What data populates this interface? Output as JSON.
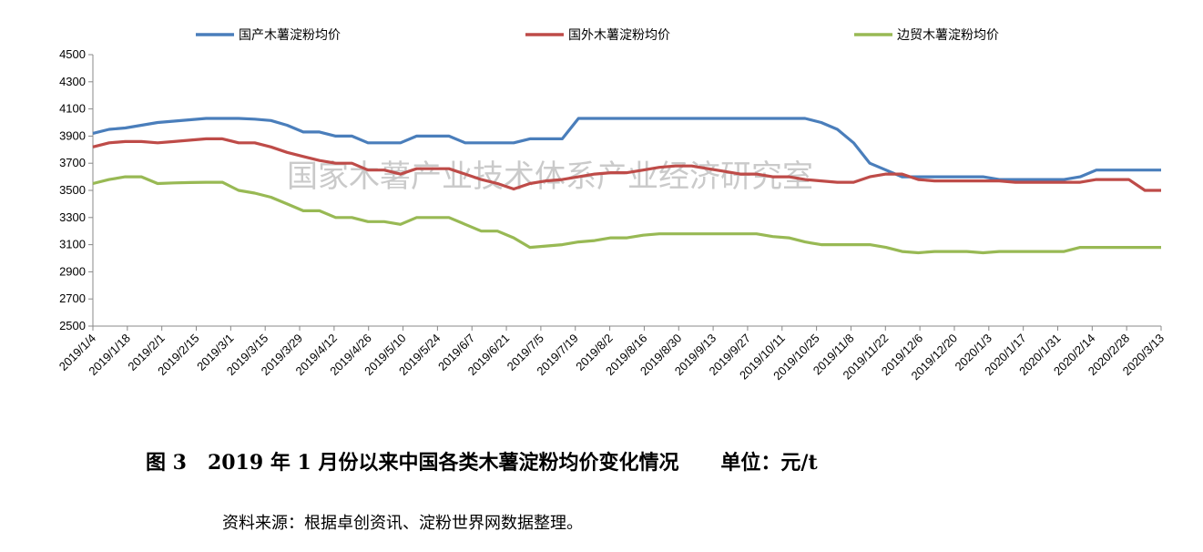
{
  "chart_data": {
    "type": "line",
    "title": "",
    "xlabel": "",
    "ylabel": "",
    "ylim": [
      2500,
      4500
    ],
    "yticks": [
      2500,
      2700,
      2900,
      3100,
      3300,
      3500,
      3700,
      3900,
      4100,
      4300,
      4500
    ],
    "legend_position": "top",
    "grid": false,
    "x_tick_labels": [
      "2019/1/4",
      "2019/1/18",
      "2019/2/1",
      "2019/2/15",
      "2019/3/1",
      "2019/3/15",
      "2019/3/29",
      "2019/4/12",
      "2019/4/26",
      "2019/5/10",
      "2019/5/24",
      "2019/6/7",
      "2019/6/21",
      "2019/7/5",
      "2019/7/19",
      "2019/8/2",
      "2019/8/16",
      "2019/8/30",
      "2019/9/13",
      "2019/9/27",
      "2019/10/11",
      "2019/10/25",
      "2019/11/8",
      "2019/11/22",
      "2019/12/6",
      "2019/12/20",
      "2020/1/3",
      "2020/1/17",
      "2020/1/31",
      "2020/2/14",
      "2020/2/28",
      "2020/3/13"
    ],
    "series": [
      {
        "name": "国产木薯淀粉均价",
        "color": "#4a7ebb",
        "values": [
          3920,
          3950,
          3960,
          3980,
          4000,
          4010,
          4020,
          4030,
          4030,
          4030,
          4025,
          4015,
          3980,
          3930,
          3930,
          3900,
          3900,
          3850,
          3850,
          3850,
          3900,
          3900,
          3900,
          3850,
          3850,
          3850,
          3850,
          3880,
          3880,
          3880,
          4030,
          4030,
          4030,
          4030,
          4030,
          4030,
          4030,
          4030,
          4030,
          4030,
          4030,
          4030,
          4030,
          4030,
          4030,
          4000,
          3950,
          3850,
          3700,
          3650,
          3600,
          3600,
          3600,
          3600,
          3600,
          3600,
          3580,
          3580,
          3580,
          3580,
          3580,
          3600,
          3650,
          3650,
          3650,
          3650,
          3650
        ]
      },
      {
        "name": "国外木薯淀粉均价",
        "color": "#be4b48",
        "values": [
          3820,
          3850,
          3860,
          3860,
          3850,
          3860,
          3870,
          3880,
          3880,
          3850,
          3850,
          3820,
          3780,
          3750,
          3720,
          3700,
          3700,
          3650,
          3650,
          3620,
          3660,
          3660,
          3660,
          3620,
          3580,
          3550,
          3510,
          3550,
          3570,
          3580,
          3600,
          3620,
          3630,
          3630,
          3650,
          3670,
          3680,
          3680,
          3660,
          3640,
          3620,
          3620,
          3600,
          3600,
          3580,
          3570,
          3560,
          3560,
          3600,
          3620,
          3620,
          3580,
          3570,
          3570,
          3570,
          3570,
          3570,
          3560,
          3560,
          3560,
          3560,
          3560,
          3580,
          3580,
          3580,
          3500,
          3500
        ]
      },
      {
        "name": "边贸木薯淀粉均价",
        "color": "#98b954",
        "values": [
          3550,
          3580,
          3600,
          3600,
          3550,
          3555,
          3558,
          3560,
          3560,
          3500,
          3480,
          3450,
          3400,
          3350,
          3350,
          3300,
          3300,
          3270,
          3270,
          3250,
          3300,
          3300,
          3300,
          3250,
          3200,
          3200,
          3150,
          3080,
          3090,
          3100,
          3120,
          3130,
          3150,
          3150,
          3170,
          3180,
          3180,
          3180,
          3180,
          3180,
          3180,
          3180,
          3160,
          3150,
          3120,
          3100,
          3100,
          3100,
          3100,
          3080,
          3050,
          3040,
          3050,
          3050,
          3050,
          3040,
          3050,
          3050,
          3050,
          3050,
          3050,
          3080,
          3080,
          3080,
          3080,
          3080,
          3080
        ]
      }
    ],
    "watermark": "国家木薯产业技术体系产业经济研究室"
  },
  "caption": "图 3   2019 年 1 月份以来中国各类木薯淀粉均价变化情况      单位：元/t",
  "source": "资料来源：根据卓创资讯、淀粉世界网数据整理。"
}
